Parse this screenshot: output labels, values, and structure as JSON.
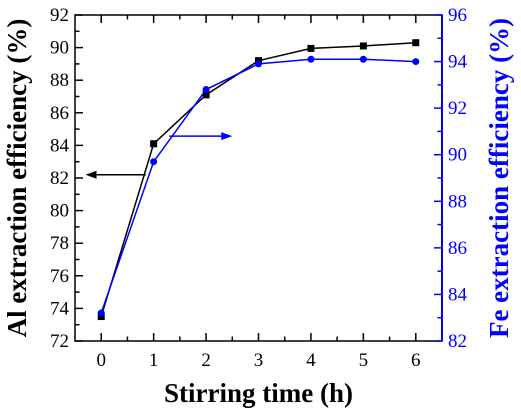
{
  "chart_data": {
    "type": "line",
    "title": "",
    "xlabel": "Stirring time (h)",
    "ylabel": "Al extraction efficiency (%)",
    "y2label": "Fe extraction efficiency (%)",
    "x": [
      0,
      1,
      2,
      3,
      4,
      5,
      6
    ],
    "xlim": [
      -0.5,
      6.5
    ],
    "ylim": [
      72,
      92
    ],
    "y2lim": [
      82,
      96
    ],
    "xticks": [
      "0",
      "1",
      "2",
      "3",
      "4",
      "5",
      "6"
    ],
    "yticks": [
      "72",
      "74",
      "76",
      "78",
      "80",
      "82",
      "84",
      "86",
      "88",
      "90",
      "92"
    ],
    "y2ticks": [
      "82",
      "84",
      "86",
      "88",
      "90",
      "92",
      "94",
      "96"
    ],
    "grid": false,
    "series": [
      {
        "axis": "left",
        "marker": "square",
        "color": "#000000",
        "values": [
          73.5,
          84.1,
          87.1,
          89.2,
          89.95,
          90.1,
          90.3
        ]
      },
      {
        "axis": "right",
        "marker": "circle",
        "color": "#0000ff",
        "values": [
          83.2,
          89.7,
          92.8,
          93.9,
          94.1,
          94.1,
          94.0
        ]
      }
    ],
    "annotations": [
      {
        "direction": "left",
        "color": "#000000",
        "x_from": 0.85,
        "x_to": -0.3,
        "y": 82.2,
        "axis": "left"
      },
      {
        "direction": "right",
        "color": "#0000ff",
        "x_from": 1.3,
        "x_to": 2.5,
        "y": 90.8,
        "axis": "right"
      }
    ],
    "colors": {
      "left_axis": "#000000",
      "right_axis": "#0000ff"
    }
  }
}
